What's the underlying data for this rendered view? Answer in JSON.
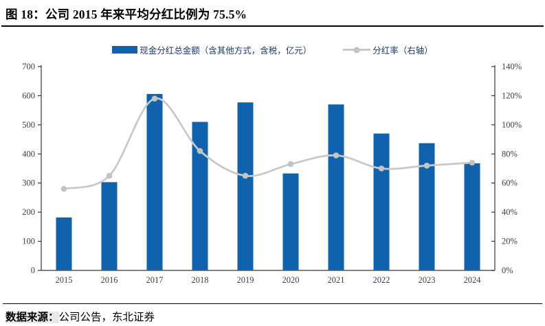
{
  "title": "图 18：公司 2015 年来平均分红比例为 75.5%",
  "source": {
    "label": "数据来源：",
    "text": "公司公告，东北证券"
  },
  "chart_data": {
    "type": "bar",
    "title": "图 18：公司 2015 年来平均分红比例为 75.5%",
    "categories": [
      "2015",
      "2016",
      "2017",
      "2018",
      "2019",
      "2020",
      "2021",
      "2022",
      "2023",
      "2024"
    ],
    "series": [
      {
        "name": "现金分红总金额（含其他方式，含税，亿元）",
        "type": "bar",
        "axis": "left",
        "values": [
          182,
          303,
          606,
          510,
          577,
          333,
          570,
          470,
          437,
          368
        ]
      },
      {
        "name": "分红率（右轴）",
        "type": "line",
        "axis": "right",
        "values": [
          56,
          65,
          118,
          82,
          65,
          73,
          79,
          70,
          72,
          74
        ]
      }
    ],
    "left_axis": {
      "min": 0,
      "max": 700,
      "step": 100,
      "ticks": [
        "0",
        "100",
        "200",
        "300",
        "400",
        "500",
        "600",
        "700"
      ]
    },
    "right_axis": {
      "min": 0,
      "max": 140,
      "step": 20,
      "ticks": [
        "0%",
        "20%",
        "40%",
        "60%",
        "80%",
        "100%",
        "120%",
        "140%"
      ]
    },
    "grid": false,
    "legend_position": "top",
    "colors": {
      "bar": "#1062AD",
      "line": "#C9C9C9",
      "marker": "#C3C3C3",
      "legend_text": "#1F3864",
      "axis_text": "#3D3D3D",
      "axis_line": "#333333",
      "baseline": "#595959"
    }
  }
}
